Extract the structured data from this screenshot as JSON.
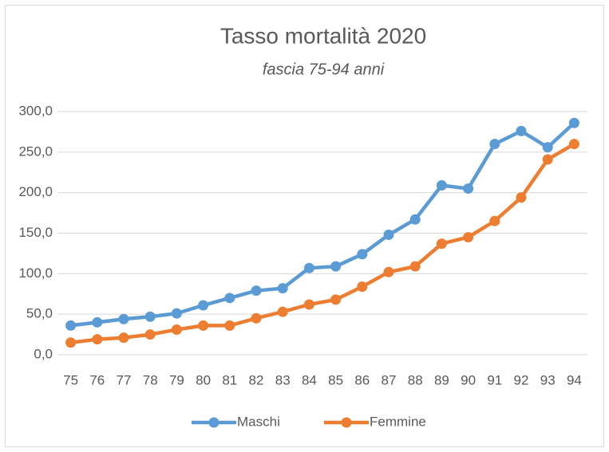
{
  "chart_data": {
    "type": "line",
    "title": "Tasso mortalità 2020",
    "subtitle": "fascia 75-94 anni",
    "categories": [
      "75",
      "76",
      "77",
      "78",
      "79",
      "80",
      "81",
      "82",
      "83",
      "84",
      "85",
      "86",
      "87",
      "88",
      "89",
      "90",
      "91",
      "92",
      "93",
      "94"
    ],
    "series": [
      {
        "name": "Maschi",
        "color": "#5b9bd5",
        "values": [
          36,
          40,
          44,
          47,
          51,
          61,
          70,
          79,
          82,
          107,
          109,
          124,
          148,
          167,
          209,
          205,
          260,
          276,
          256,
          286
        ]
      },
      {
        "name": "Femmine",
        "color": "#ed7d31",
        "values": [
          15,
          19,
          21,
          25,
          31,
          36,
          36,
          45,
          53,
          62,
          68,
          84,
          102,
          109,
          137,
          145,
          165,
          194,
          241,
          260
        ]
      }
    ],
    "ylim": [
      0,
      300
    ],
    "yticks": [
      {
        "value": 0,
        "label": "0,0"
      },
      {
        "value": 50,
        "label": "50,0"
      },
      {
        "value": 100,
        "label": "100,0"
      },
      {
        "value": 150,
        "label": "150,0"
      },
      {
        "value": 200,
        "label": "200,0"
      },
      {
        "value": 250,
        "label": "250,0"
      },
      {
        "value": 300,
        "label": "300,0"
      }
    ],
    "grid": true,
    "legend": "bottom"
  }
}
